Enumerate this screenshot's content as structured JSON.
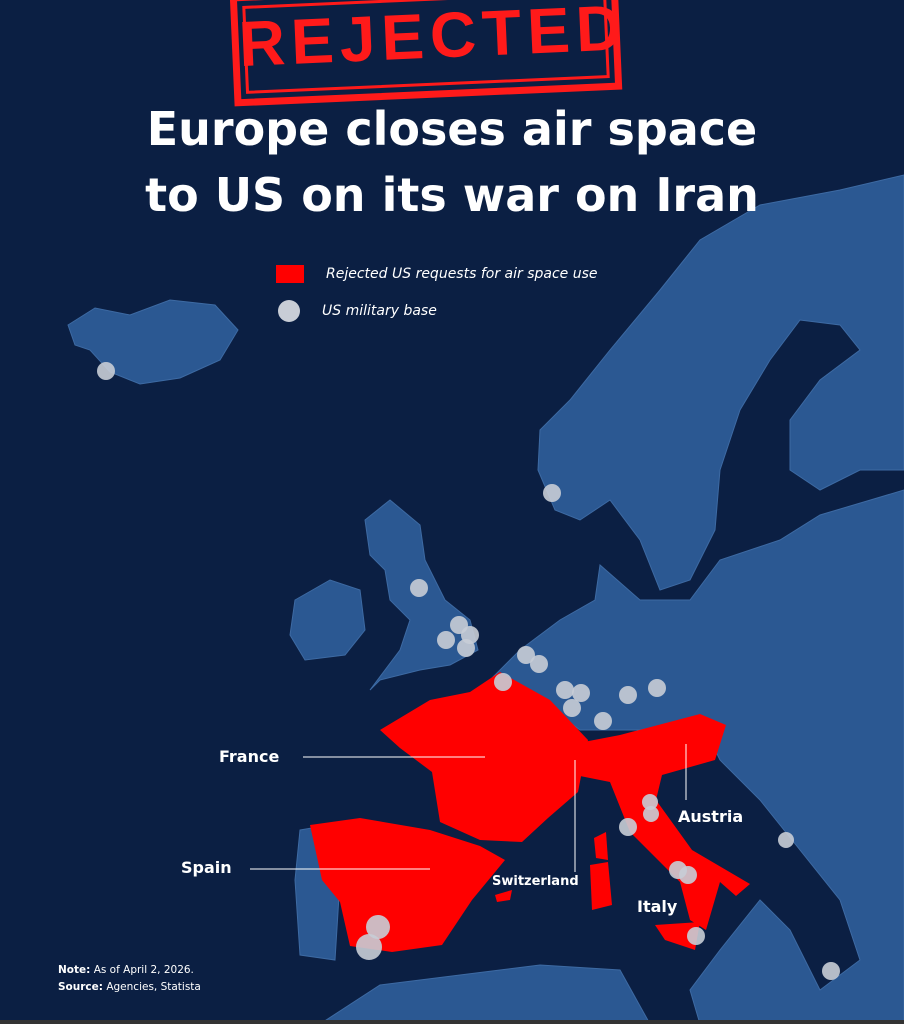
{
  "stamp": "REJECTED",
  "title": {
    "line1": "Europe closes air space",
    "line2": "to US on its war on Iran"
  },
  "legend": [
    {
      "label": "Rejected US requests for air space use",
      "symbol": "red-square",
      "color": "#ff0000"
    },
    {
      "label": "US military base",
      "symbol": "grey-circle",
      "color": "#c8cdd6"
    }
  ],
  "countries_rejected": [
    "France",
    "Spain",
    "Switzerland",
    "Austria",
    "Italy"
  ],
  "note": {
    "label": "Note:",
    "text": "As of April 2, 2026."
  },
  "source": {
    "label": "Source:",
    "text": "Agencies, Statista"
  },
  "colors": {
    "background": "#0b1f43",
    "land": "#2b5892",
    "rejected": "#ff0000",
    "base": "#c8cdd6"
  }
}
